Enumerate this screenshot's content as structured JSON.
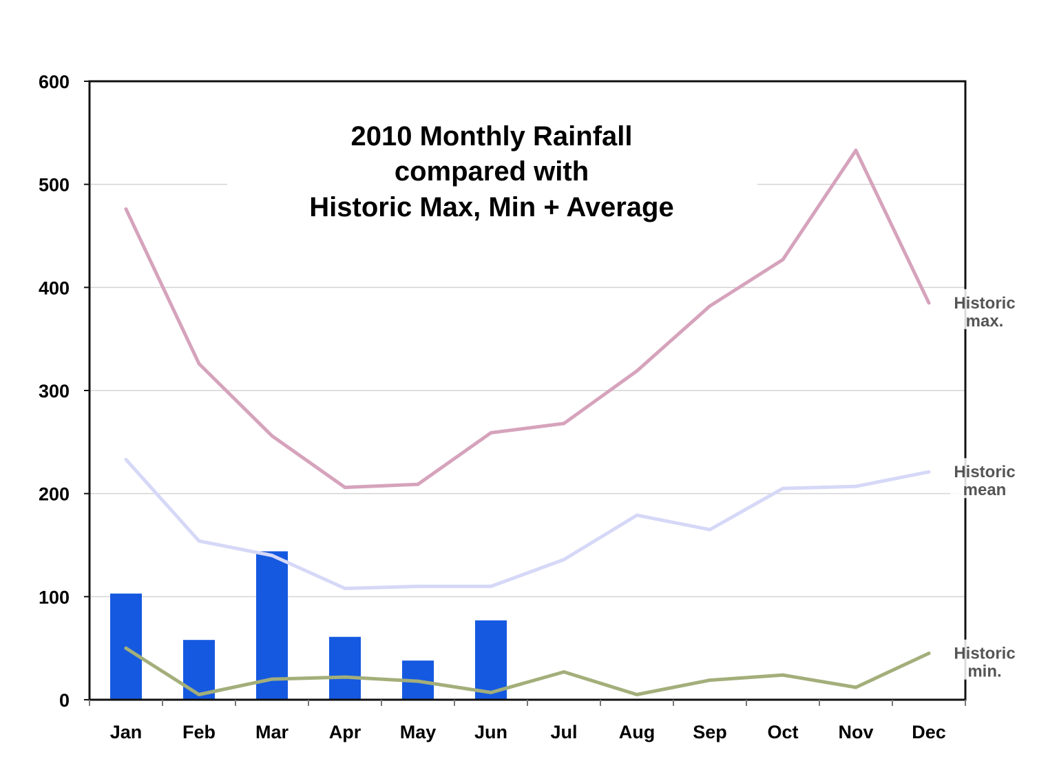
{
  "chart_data": {
    "type": "bar",
    "title_lines": [
      "2010 Monthly Rainfall",
      "compared with",
      "Historic Max, Min + Average"
    ],
    "categories": [
      "Jan",
      "Feb",
      "Mar",
      "Apr",
      "May",
      "Jun",
      "Jul",
      "Aug",
      "Sep",
      "Oct",
      "Nov",
      "Dec"
    ],
    "ylim": [
      0,
      600
    ],
    "yticks": [
      0,
      100,
      200,
      300,
      400,
      500,
      600
    ],
    "grid": true,
    "bars": {
      "values": [
        103,
        58,
        144,
        61,
        38,
        77,
        null,
        null,
        null,
        null,
        null,
        null
      ],
      "color": "#1559e0"
    },
    "series": [
      {
        "label_lines": [
          "Historic",
          "max."
        ],
        "values": [
          476,
          326,
          256,
          206,
          209,
          259,
          268,
          319,
          382,
          427,
          533,
          385
        ],
        "color": "#d6a3bc"
      },
      {
        "label_lines": [
          "Historic",
          "mean"
        ],
        "values": [
          233,
          154,
          140,
          108,
          110,
          110,
          136,
          179,
          165,
          205,
          207,
          221
        ],
        "color": "#d6d8f7"
      },
      {
        "label_lines": [
          "Historic",
          "min."
        ],
        "values": [
          50,
          5,
          20,
          22,
          18,
          7,
          27,
          5,
          19,
          24,
          12,
          45
        ],
        "color": "#a3ae7a"
      }
    ]
  }
}
